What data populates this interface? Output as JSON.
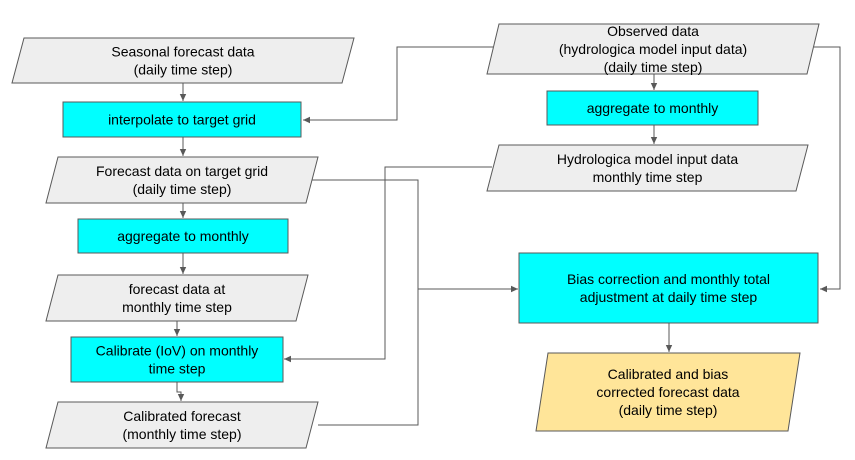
{
  "colors": {
    "data_fill": "#eeeeee",
    "process_fill": "#00ffff",
    "output_fill": "#ffe599",
    "border": "#595959",
    "edge": "#595959"
  },
  "nodes": [
    {
      "id": "seasonal_forecast",
      "shape": "data",
      "lines": [
        "Seasonal forecast data",
        "(daily time step)"
      ]
    },
    {
      "id": "interpolate",
      "shape": "process",
      "lines": [
        "interpolate to target grid"
      ]
    },
    {
      "id": "forecast_target_grid",
      "shape": "data",
      "lines": [
        "Forecast data on target grid",
        "(daily time step)"
      ]
    },
    {
      "id": "aggregate_forecast",
      "shape": "process",
      "lines": [
        "aggregate to monthly"
      ]
    },
    {
      "id": "forecast_monthly",
      "shape": "data",
      "lines": [
        "forecast data at",
        "monthly time step"
      ]
    },
    {
      "id": "calibrate",
      "shape": "process",
      "lines": [
        "Calibrate (IoV) on monthly",
        "time step"
      ]
    },
    {
      "id": "calibrated_forecast",
      "shape": "data",
      "lines": [
        "Calibrated forecast",
        "(monthly time step)"
      ]
    },
    {
      "id": "observed",
      "shape": "data",
      "lines": [
        "Observed data",
        "(hydrologica model input data)",
        "(daily time step)"
      ]
    },
    {
      "id": "aggregate_observed",
      "shape": "process",
      "lines": [
        "aggregate to monthly"
      ]
    },
    {
      "id": "hydro_monthly",
      "shape": "data",
      "lines": [
        "Hydrologica model input data",
        "monthly time step"
      ]
    },
    {
      "id": "bias_correction",
      "shape": "process",
      "lines": [
        "Bias correction and monthly total",
        "adjustment at daily time step"
      ]
    },
    {
      "id": "final_output",
      "shape": "output",
      "lines": [
        "Calibrated and bias",
        "corrected forecast data",
        "(daily time step)"
      ]
    }
  ],
  "edges": [
    {
      "from": "seasonal_forecast",
      "to": "interpolate"
    },
    {
      "from": "interpolate",
      "to": "forecast_target_grid"
    },
    {
      "from": "forecast_target_grid",
      "to": "aggregate_forecast"
    },
    {
      "from": "aggregate_forecast",
      "to": "forecast_monthly"
    },
    {
      "from": "forecast_monthly",
      "to": "calibrate"
    },
    {
      "from": "calibrate",
      "to": "calibrated_forecast"
    },
    {
      "from": "observed",
      "to": "interpolate"
    },
    {
      "from": "observed",
      "to": "aggregate_observed"
    },
    {
      "from": "aggregate_observed",
      "to": "hydro_monthly"
    },
    {
      "from": "hydro_monthly",
      "to": "calibrate"
    },
    {
      "from": "forecast_target_grid",
      "to": "bias_correction"
    },
    {
      "from": "calibrated_forecast",
      "to": "bias_correction"
    },
    {
      "from": "observed",
      "to": "bias_correction"
    },
    {
      "from": "bias_correction",
      "to": "final_output"
    }
  ]
}
